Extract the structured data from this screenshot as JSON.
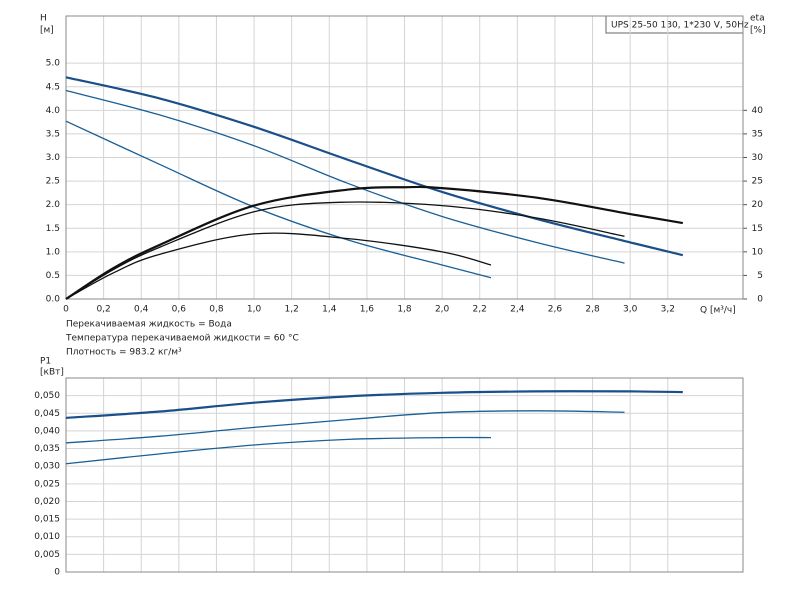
{
  "chart_data": [
    {
      "type": "line",
      "title": "UPS 25-50 130, 1*230 V, 50Hz",
      "ylabel": "H",
      "yunit": "[м]",
      "y2label": "eta",
      "y2unit": "[%]",
      "xlabel": "Q [м³/ч]",
      "annotations": [
        "Перекачиваемая жидкость = Вода",
        "Температура перекачиваемой жидкости = 60 °C",
        "Плотность = 983.2 кг/м³"
      ],
      "xlim": [
        0,
        3.6
      ],
      "xticks": [
        0,
        {
          "value": 0.2,
          "label": "0,2"
        },
        {
          "value": 0.4,
          "label": "0,4"
        },
        {
          "value": 0.6,
          "label": "0,6"
        },
        {
          "value": 0.8,
          "label": "0,8"
        },
        {
          "value": 1.0,
          "label": "1,0"
        },
        {
          "value": 1.2,
          "label": "1,2"
        },
        {
          "value": 1.4,
          "label": "1,4"
        },
        {
          "value": 1.6,
          "label": "1,6"
        },
        {
          "value": 1.8,
          "label": "1,8"
        },
        {
          "value": 2.0,
          "label": "2,0"
        },
        {
          "value": 2.2,
          "label": "2,2"
        },
        {
          "value": 2.4,
          "label": "2,4"
        },
        {
          "value": 2.6,
          "label": "2,6"
        },
        {
          "value": 2.8,
          "label": "2,8"
        },
        {
          "value": 3.0,
          "label": "3,0"
        },
        {
          "value": 3.2,
          "label": "3,2"
        }
      ],
      "ylim": [
        0,
        6
      ],
      "yticks": [
        {
          "value": 0,
          "label": "0.0"
        },
        0.5,
        {
          "value": 1,
          "label": "1.0"
        },
        1.5,
        {
          "value": 2,
          "label": "2.0"
        },
        2.5,
        {
          "value": 3,
          "label": "3.0"
        },
        3.5,
        {
          "value": 4,
          "label": "4.0"
        },
        4.5,
        {
          "value": 5,
          "label": "5.0"
        }
      ],
      "y2lim": [
        0,
        60
      ],
      "y2ticks": [
        0,
        5,
        10,
        15,
        20,
        25,
        30,
        35,
        40
      ],
      "grid": true,
      "series": [
        {
          "color": "#1a4f8a",
          "x": [
            0,
            0.5,
            1.0,
            1.5,
            2.0,
            2.5,
            3.0,
            3.28
          ],
          "values": [
            4.7,
            4.25,
            3.65,
            2.95,
            2.27,
            1.7,
            1.2,
            0.93
          ]
        },
        {
          "color": "#1a5f96",
          "x": [
            0,
            0.5,
            1.0,
            1.5,
            2.0,
            2.5,
            2.97
          ],
          "values": [
            4.42,
            3.9,
            3.25,
            2.45,
            1.75,
            1.2,
            0.76
          ]
        },
        {
          "color": "#1a5f96",
          "x": [
            0,
            0.5,
            1.0,
            1.5,
            2.0,
            2.26
          ],
          "values": [
            3.77,
            2.85,
            1.95,
            1.25,
            0.72,
            0.45
          ]
        },
        {
          "color": "#111111",
          "axis": "y2",
          "x": [
            0,
            0.25,
            0.5,
            1.0,
            1.5,
            1.8,
            2.0,
            2.5,
            3.0,
            3.28
          ],
          "values": [
            0,
            6.5,
            11.5,
            19.8,
            23.2,
            23.7,
            23.5,
            21.5,
            18.0,
            16.1
          ]
        },
        {
          "color": "#111111",
          "axis": "y2",
          "x": [
            0,
            0.25,
            0.5,
            1.0,
            1.45,
            2.0,
            2.5,
            2.97
          ],
          "values": [
            0,
            6.2,
            11.0,
            18.5,
            20.5,
            19.8,
            17.2,
            13.3
          ]
        },
        {
          "color": "#111111",
          "axis": "y2",
          "x": [
            0,
            0.25,
            0.5,
            1.0,
            1.5,
            2.0,
            2.26
          ],
          "values": [
            0,
            5.5,
            9.5,
            13.8,
            12.8,
            10.0,
            7.2
          ]
        }
      ]
    },
    {
      "type": "line",
      "ylabel": "P1",
      "yunit": "[кВт]",
      "xlim": [
        0,
        3.6
      ],
      "ylim": [
        0,
        0.055
      ],
      "yticks": [
        0,
        {
          "value": 0.005,
          "label": "0,005"
        },
        {
          "value": 0.01,
          "label": "0,010"
        },
        {
          "value": 0.015,
          "label": "0,015"
        },
        {
          "value": 0.02,
          "label": "0,020"
        },
        {
          "value": 0.025,
          "label": "0,025"
        },
        {
          "value": 0.03,
          "label": "0,030"
        },
        {
          "value": 0.035,
          "label": "0,035"
        },
        {
          "value": 0.04,
          "label": "0,040"
        },
        {
          "value": 0.045,
          "label": "0,045"
        },
        {
          "value": 0.05,
          "label": "0,050"
        }
      ],
      "grid": true,
      "series": [
        {
          "color": "#1a4f8a",
          "x": [
            0,
            0.5,
            1.0,
            1.5,
            2.0,
            2.5,
            3.0,
            3.28
          ],
          "values": [
            0.0437,
            0.0455,
            0.048,
            0.0498,
            0.0508,
            0.0512,
            0.0512,
            0.051
          ]
        },
        {
          "color": "#1a5f96",
          "x": [
            0,
            0.5,
            1.0,
            1.5,
            2.0,
            2.5,
            2.97
          ],
          "values": [
            0.0366,
            0.0385,
            0.041,
            0.0432,
            0.0452,
            0.0457,
            0.0453
          ]
        },
        {
          "color": "#1a5f96",
          "x": [
            0,
            0.5,
            1.0,
            1.5,
            2.0,
            2.26
          ],
          "values": [
            0.0307,
            0.0335,
            0.036,
            0.0376,
            0.0381,
            0.0381
          ]
        }
      ]
    }
  ]
}
